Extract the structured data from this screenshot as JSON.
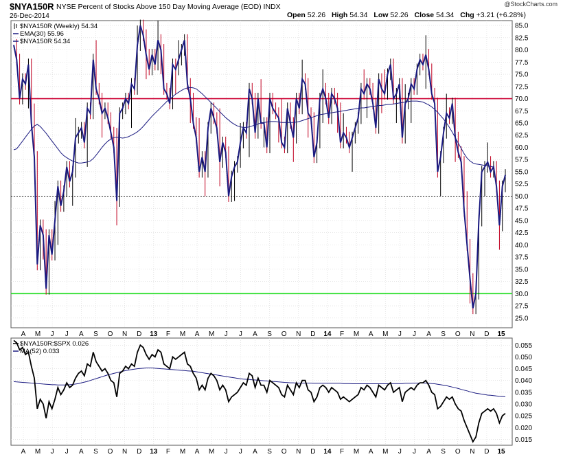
{
  "header": {
    "symbol": "$NYA150R",
    "description": "NYSE Percent of Stocks Above 150 Day Moving Average (EOD) INDX",
    "date": "26-Dec-2014",
    "brand": "@StockCharts.com",
    "ohlc": {
      "open_label": "Open",
      "open": "52.26",
      "high_label": "High",
      "high": "54.34",
      "low_label": "Low",
      "low": "52.26",
      "close_label": "Close",
      "close": "54.34",
      "chg_label": "Chg",
      "chg": "+3.21 (+6.28%)"
    }
  },
  "colors": {
    "price": "#1a1a80",
    "ema": "#1a1a80",
    "up_bar": "#000000",
    "down_bar": "#c00020",
    "line70": "#cc0033",
    "line30": "#22dd22",
    "ratio": "#000000",
    "ma52": "#1a1a80",
    "grid": "#d8d8d8"
  },
  "chart_data": [
    {
      "type": "line",
      "panel": "main",
      "legend": [
        {
          "label": "$NYA150R (Weekly) 54.34",
          "icon": "candle-icon"
        },
        {
          "label": "EMA(30) 55.96",
          "icon": "line-icon"
        },
        {
          "label": "$NYA150R 54.34",
          "icon": "line-icon"
        }
      ],
      "ylim": [
        23,
        86
      ],
      "yticks": [
        "85.0",
        "82.5",
        "80.0",
        "77.5",
        "75.0",
        "72.5",
        "70.0",
        "67.5",
        "65.0",
        "62.5",
        "60.0",
        "57.5",
        "55.0",
        "52.5",
        "50.0",
        "47.5",
        "45.0",
        "42.5",
        "40.0",
        "37.5",
        "35.0",
        "32.5",
        "30.0",
        "27.5",
        "25.0"
      ],
      "reference_lines": [
        70,
        50,
        30
      ],
      "x_tick_labels": [
        "A",
        "M",
        "J",
        "J",
        "A",
        "S",
        "O",
        "N",
        "D",
        "13",
        "F",
        "M",
        "A",
        "M",
        "J",
        "J",
        "A",
        "S",
        "O",
        "N",
        "D",
        "14",
        "F",
        "M",
        "A",
        "M",
        "J",
        "J",
        "A",
        "S",
        "O",
        "N",
        "D",
        "15"
      ],
      "series": [
        {
          "name": "$NYA150R",
          "values": [
            81,
            78,
            70,
            74,
            73,
            77,
            65,
            58,
            36,
            44,
            42,
            31,
            42,
            38,
            45,
            52,
            48,
            51,
            56,
            53,
            55,
            62,
            63,
            64,
            61,
            68,
            67,
            78,
            72,
            70,
            67,
            68,
            66,
            63,
            60,
            49,
            67,
            68,
            70,
            69,
            73,
            72,
            81,
            85,
            83,
            79,
            76,
            79,
            77,
            82,
            80,
            72,
            71,
            69,
            77,
            76,
            78,
            80,
            82,
            73,
            70,
            65,
            62,
            55,
            58,
            55,
            64,
            68,
            66,
            64,
            57,
            61,
            59,
            50,
            54,
            56,
            57,
            61,
            64,
            63,
            72,
            70,
            63,
            70,
            65,
            65,
            60,
            70,
            68,
            67,
            66,
            61,
            60,
            68,
            65,
            62,
            70,
            68,
            74,
            73,
            67,
            66,
            58,
            61,
            70,
            72,
            70,
            66,
            71,
            70,
            68,
            61,
            63,
            62,
            60,
            62,
            64,
            66,
            72,
            71,
            73,
            72,
            69,
            64,
            74,
            72,
            71,
            75,
            77,
            70,
            71,
            73,
            62,
            69,
            70,
            73,
            72,
            76,
            78,
            77,
            79,
            76,
            71,
            69,
            55,
            58,
            63,
            67,
            66,
            69,
            62,
            59,
            57,
            47,
            40,
            33,
            27,
            30,
            45,
            55,
            56,
            57,
            55,
            56,
            52,
            44,
            52,
            54.34
          ]
        },
        {
          "name": "EMA(30)",
          "values": [
            59.5,
            59.7,
            60.5,
            61.3,
            62.1,
            62.9,
            63.7,
            64.4,
            64.7,
            64.3,
            63.6,
            62.9,
            62.1,
            61.3,
            60.5,
            59.7,
            58.9,
            58.3,
            57.9,
            57.5,
            57.2,
            57.0,
            56.8,
            56.8,
            56.9,
            57.0,
            57.2,
            57.7,
            58.4,
            59.2,
            60.0,
            60.7,
            61.3,
            61.7,
            62.0,
            62.1,
            62.0,
            61.9,
            62.0,
            62.2,
            62.5,
            62.8,
            63.2,
            63.7,
            64.3,
            65.0,
            65.7,
            66.4,
            67.0,
            67.6,
            68.2,
            68.8,
            69.4,
            69.9,
            70.4,
            70.9,
            71.3,
            71.7,
            72.0,
            72.2,
            72.3,
            72.2,
            72.0,
            71.5,
            71.0,
            70.4,
            69.8,
            69.2,
            68.6,
            68.0,
            67.3,
            66.7,
            66.1,
            65.6,
            65.1,
            64.7,
            64.4,
            64.2,
            64.1,
            64.1,
            64.2,
            64.4,
            64.6,
            64.8,
            65.0,
            65.1,
            65.2,
            65.3,
            65.3,
            65.3,
            65.2,
            65.1,
            65.1,
            65.1,
            65.1,
            65.1,
            65.2,
            65.3,
            65.5,
            65.7,
            65.9,
            66.1,
            66.3,
            66.5,
            66.7,
            66.8,
            66.9,
            67.0,
            67.1,
            67.2,
            67.3,
            67.4,
            67.5,
            67.6,
            67.7,
            67.8,
            67.9,
            68.0,
            68.1,
            68.1,
            68.2,
            68.3,
            68.4,
            68.5,
            68.6,
            68.6,
            68.7,
            68.8,
            68.8,
            68.9,
            69.0,
            69.1,
            69.2,
            69.3,
            69.4,
            69.5,
            69.5,
            69.5,
            69.4,
            69.3,
            69.0,
            68.7,
            68.3,
            67.8,
            67.2,
            66.5,
            65.8,
            65.0,
            64.1,
            63.1,
            62.0,
            60.9,
            59.8,
            58.7,
            57.8,
            57.2,
            56.8,
            56.6,
            56.5,
            56.4,
            56.3,
            56.2,
            56.1,
            55.96
          ]
        }
      ]
    },
    {
      "type": "line",
      "panel": "ratio",
      "legend": [
        {
          "label": "$NYA150R:$SPX 0.026",
          "icon": "line-icon"
        },
        {
          "label": "MA(52) 0.033",
          "icon": "line-icon"
        }
      ],
      "ylim": [
        0.0125,
        0.058
      ],
      "yticks": [
        "0.055",
        "0.050",
        "0.045",
        "0.040",
        "0.035",
        "0.030",
        "0.025",
        "0.020",
        "0.015"
      ],
      "x_tick_labels": [
        "A",
        "M",
        "J",
        "J",
        "A",
        "S",
        "O",
        "N",
        "D",
        "13",
        "F",
        "M",
        "A",
        "M",
        "J",
        "J",
        "A",
        "S",
        "O",
        "N",
        "D",
        "14",
        "F",
        "M",
        "A",
        "M",
        "J",
        "J",
        "A",
        "S",
        "O",
        "N",
        "D",
        "15"
      ],
      "series": [
        {
          "name": "$NYA150R:$SPX",
          "values": [
            0.057,
            0.056,
            0.053,
            0.054,
            0.051,
            0.052,
            0.046,
            0.041,
            0.028,
            0.032,
            0.03,
            0.024,
            0.031,
            0.028,
            0.032,
            0.037,
            0.034,
            0.036,
            0.039,
            0.037,
            0.038,
            0.041,
            0.043,
            0.044,
            0.042,
            0.047,
            0.046,
            0.052,
            0.048,
            0.046,
            0.044,
            0.045,
            0.043,
            0.04,
            0.039,
            0.033,
            0.043,
            0.044,
            0.046,
            0.045,
            0.047,
            0.046,
            0.052,
            0.055,
            0.054,
            0.051,
            0.049,
            0.051,
            0.05,
            0.053,
            0.052,
            0.047,
            0.046,
            0.045,
            0.05,
            0.049,
            0.05,
            0.051,
            0.052,
            0.047,
            0.046,
            0.043,
            0.041,
            0.036,
            0.038,
            0.036,
            0.041,
            0.043,
            0.042,
            0.04,
            0.036,
            0.038,
            0.036,
            0.031,
            0.033,
            0.034,
            0.035,
            0.037,
            0.039,
            0.038,
            0.043,
            0.042,
            0.037,
            0.041,
            0.038,
            0.038,
            0.035,
            0.04,
            0.039,
            0.038,
            0.037,
            0.034,
            0.033,
            0.038,
            0.036,
            0.034,
            0.039,
            0.037,
            0.04,
            0.04,
            0.036,
            0.035,
            0.031,
            0.033,
            0.037,
            0.038,
            0.037,
            0.035,
            0.037,
            0.036,
            0.035,
            0.032,
            0.033,
            0.032,
            0.031,
            0.032,
            0.033,
            0.034,
            0.037,
            0.036,
            0.038,
            0.037,
            0.035,
            0.033,
            0.038,
            0.037,
            0.036,
            0.038,
            0.039,
            0.035,
            0.036,
            0.037,
            0.031,
            0.035,
            0.036,
            0.037,
            0.036,
            0.038,
            0.039,
            0.039,
            0.04,
            0.038,
            0.035,
            0.034,
            0.028,
            0.029,
            0.031,
            0.033,
            0.032,
            0.033,
            0.03,
            0.028,
            0.027,
            0.023,
            0.02,
            0.017,
            0.014,
            0.016,
            0.022,
            0.026,
            0.027,
            0.028,
            0.027,
            0.028,
            0.026,
            0.022,
            0.025,
            0.026
          ]
        },
        {
          "name": "MA(52)",
          "values": [
            0.0395,
            0.0394,
            0.0393,
            0.0392,
            0.0391,
            0.039,
            0.0389,
            0.0388,
            0.0387,
            0.0386,
            0.0385,
            0.0384,
            0.0383,
            0.0382,
            0.0382,
            0.0381,
            0.0381,
            0.0381,
            0.0381,
            0.0382,
            0.0383,
            0.0385,
            0.0387,
            0.039,
            0.0393,
            0.0396,
            0.04,
            0.0404,
            0.0408,
            0.0412,
            0.0416,
            0.042,
            0.0424,
            0.0427,
            0.043,
            0.0433,
            0.0436,
            0.0439,
            0.0442,
            0.0444,
            0.0446,
            0.0448,
            0.045,
            0.0451,
            0.0452,
            0.0453,
            0.0453,
            0.0453,
            0.0452,
            0.0451,
            0.045,
            0.0449,
            0.0448,
            0.0447,
            0.0446,
            0.0445,
            0.0444,
            0.0443,
            0.0442,
            0.0441,
            0.044,
            0.0439,
            0.0437,
            0.0435,
            0.0433,
            0.0431,
            0.0429,
            0.0427,
            0.0425,
            0.0423,
            0.0421,
            0.0419,
            0.0417,
            0.0415,
            0.0413,
            0.0411,
            0.0409,
            0.0407,
            0.0406,
            0.0405,
            0.0404,
            0.0403,
            0.0402,
            0.0401,
            0.04,
            0.0399,
            0.0398,
            0.0397,
            0.0396,
            0.0395,
            0.0394,
            0.0393,
            0.0392,
            0.0391,
            0.039,
            0.039,
            0.0389,
            0.0389,
            0.0389,
            0.0389,
            0.0389,
            0.0389,
            0.0388,
            0.0388,
            0.0388,
            0.0388,
            0.0388,
            0.0388,
            0.0388,
            0.0388,
            0.0388,
            0.0388,
            0.0387,
            0.0387,
            0.0387,
            0.0386,
            0.0386,
            0.0386,
            0.0386,
            0.0386,
            0.0386,
            0.0386,
            0.0386,
            0.0386,
            0.0386,
            0.0386,
            0.0386,
            0.0386,
            0.0386,
            0.0387,
            0.0387,
            0.0387,
            0.0387,
            0.0388,
            0.0388,
            0.0388,
            0.0389,
            0.0389,
            0.0389,
            0.0389,
            0.0389,
            0.0388,
            0.0387,
            0.0386,
            0.0384,
            0.0382,
            0.038,
            0.0378,
            0.0375,
            0.0372,
            0.0369,
            0.0366,
            0.0362,
            0.0359,
            0.0356,
            0.0352,
            0.0349,
            0.0346,
            0.0344,
            0.0342,
            0.034,
            0.0338,
            0.0337,
            0.0336,
            0.0334,
            0.0333,
            0.0332,
            0.0331
          ]
        }
      ]
    }
  ]
}
